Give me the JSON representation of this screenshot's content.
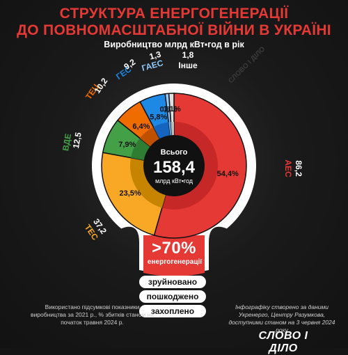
{
  "header": {
    "title_line1": "СТРУКТУРА ЕНЕРГОГЕНЕРАЦІЇ",
    "title_line2": "ДО ПОВНОМАСШТАБНОЇ ВІЙНИ В УКРАЇНІ",
    "subtitle": "Виробництво млрд кВт▪год в рік"
  },
  "center": {
    "label": "Всього",
    "value": "158,4",
    "unit": "млрд кВт▪год"
  },
  "callout": {
    "percent": ">70%",
    "text": "енергогенерації",
    "items": [
      "зруйновано",
      "пошкоджено",
      "захоплено"
    ]
  },
  "notes": {
    "left": "Використано підсумкові показники виробництва за 2021 р., % збитків станом на початок травня 2024 р.",
    "right": "Інфографіку створено за даними Укренерго, Центру Разумкова, доступними станом на 3 червня 2024 року"
  },
  "logo": {
    "text": "СЛОВО І ДІЛО"
  },
  "watermark": "СЛОВО І ДІЛО",
  "chart_data": {
    "type": "pie",
    "title": "СТРУКТУРА ЕНЕРГОГЕНЕРАЦІЇ ДО ПОВНОМАСШТАБНОЇ ВІЙНИ В УКРАЇНІ",
    "subtitle": "Виробництво млрд кВт▪год в рік",
    "total": 158.4,
    "slices": [
      {
        "name": "АЕС",
        "value": 86.2,
        "value_label": "86,2",
        "pct_label": "54,4%",
        "color": "#e53935",
        "damaged_color": "#c62828"
      },
      {
        "name": "ТЕС",
        "value": 37.2,
        "value_label": "37,2",
        "pct_label": "23,5%",
        "color": "#f9a825",
        "damaged_color": "#c68400"
      },
      {
        "name": "ВДЕ",
        "value": 12.5,
        "value_label": "12,5",
        "pct_label": "7,9%",
        "color": "#43a047",
        "damaged_color": "#2e7d32"
      },
      {
        "name": "ТЕЦ",
        "value": 10.2,
        "value_label": "10,2",
        "pct_label": "6,4%",
        "color": "#ef6c00",
        "damaged_color": "#bf5000"
      },
      {
        "name": "ГЕС",
        "value": 9.2,
        "value_label": "9,2",
        "pct_label": "5,8%",
        "color": "#1e88e5",
        "damaged_color": "#1565c0"
      },
      {
        "name": "ГАЕС",
        "value": 1.3,
        "value_label": "1,3",
        "pct_label": "0,8%",
        "color": "#90caf9",
        "damaged_color": "#64b5f6"
      },
      {
        "name": "Інше",
        "value": 1.8,
        "value_label": "1,8",
        "pct_label": "1,1%",
        "color": "#e0e0e0",
        "damaged_color": "#bdbdbd"
      }
    ]
  }
}
